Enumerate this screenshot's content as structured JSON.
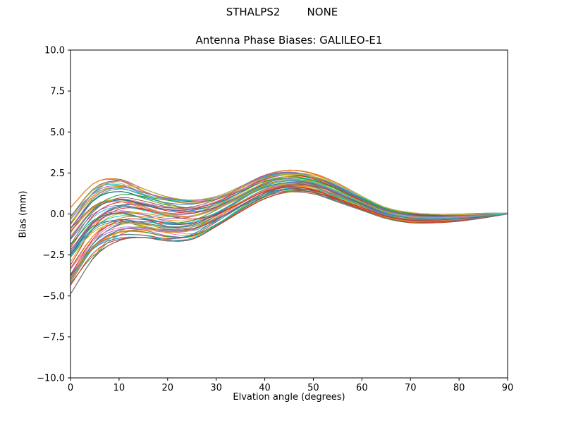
{
  "figure": {
    "suptitle": "STHALPS2        NONE",
    "title": "Antenna Phase Biases: GALILEO-E1"
  },
  "chart_data": {
    "type": "line",
    "suptitle": "STHALPS2        NONE",
    "title": "Antenna Phase Biases: GALILEO-E1",
    "xlabel": "Elvation angle (degrees)",
    "ylabel": "Bias (mm)",
    "xlim": [
      0,
      90
    ],
    "ylim": [
      -10,
      10
    ],
    "xticks": [
      0,
      10,
      20,
      30,
      40,
      50,
      60,
      70,
      80,
      90
    ],
    "yticks": [
      -10.0,
      -7.5,
      -5.0,
      -2.5,
      0.0,
      2.5,
      5.0,
      7.5,
      10.0
    ],
    "grid": false,
    "legend": "none",
    "description": "Ensemble of per-antenna phase bias curves forming a band; band envelope sampled every 5 degrees of elevation",
    "n_series": 70,
    "ensemble_band": {
      "x": [
        0,
        5,
        10,
        15,
        20,
        25,
        30,
        35,
        40,
        45,
        50,
        55,
        60,
        65,
        70,
        75,
        80,
        85,
        90
      ],
      "upper": [
        0.5,
        2.0,
        2.2,
        1.6,
        1.1,
        0.9,
        1.1,
        1.7,
        2.4,
        2.7,
        2.5,
        1.9,
        1.1,
        0.4,
        0.1,
        0.0,
        0.0,
        0.05,
        0.05
      ],
      "lower": [
        -5.0,
        -2.7,
        -1.7,
        -1.5,
        -1.7,
        -1.6,
        -0.8,
        0.1,
        0.9,
        1.3,
        1.2,
        0.7,
        0.2,
        -0.3,
        -0.55,
        -0.55,
        -0.45,
        -0.25,
        0.0
      ]
    },
    "jitter": {
      "amp_min": 0.07,
      "amp_max": 0.16,
      "freq_min": 0.04,
      "freq_max": 0.16
    },
    "colors": [
      "#1f77b4",
      "#ff7f0e",
      "#2ca02c",
      "#d62728",
      "#9467bd",
      "#8c564b",
      "#e377c2",
      "#7f7f7f",
      "#bcbd22",
      "#17becf"
    ],
    "line_width": 1,
    "axes_color": "#000000",
    "background_color": "#ffffff"
  }
}
